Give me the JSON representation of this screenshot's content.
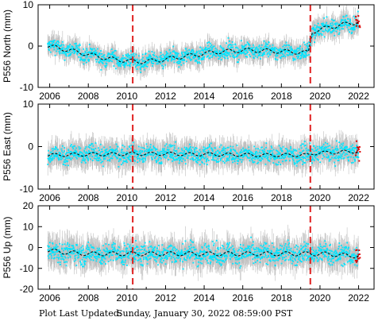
{
  "footer": {
    "label": "Plot Last Updated:",
    "value": "Sunday, January 30, 2022 08:59:00 PST"
  },
  "colors": {
    "error_bar": "#bfbfbf",
    "points": "#00e5ff",
    "model_line": "#000000",
    "event_line": "#e02020",
    "recent_points": "#dd0000"
  },
  "chart_data": [
    {
      "type": "scatter",
      "title": "",
      "xlabel": "",
      "ylabel": "P556 North (mm)",
      "xlim": [
        2005.4,
        2022.8
      ],
      "ylim": [
        -10,
        10
      ],
      "xticks": [
        2006,
        2008,
        2010,
        2012,
        2014,
        2016,
        2018,
        2020,
        2022
      ],
      "yticks": [
        -10,
        0,
        10
      ],
      "event_lines_x": [
        2010.3,
        2019.5
      ],
      "series": [
        {
          "x": [
            2005.9,
            2006.5,
            2007.0,
            2007.5,
            2008.0,
            2008.5,
            2009.0,
            2009.5,
            2010.0,
            2010.5,
            2011.0,
            2011.5,
            2012.0,
            2012.5,
            2013.0,
            2013.5,
            2014.0,
            2014.5,
            2015.0,
            2015.5,
            2016.0,
            2016.5,
            2017.0,
            2017.5,
            2018.0,
            2018.5,
            2019.0,
            2019.4,
            2019.6,
            2020.0,
            2020.5,
            2021.0,
            2021.5,
            2022.0
          ],
          "y": [
            0.0,
            -0.5,
            -1.0,
            -1.5,
            -2.0,
            -2.5,
            -3.0,
            -3.3,
            -3.5,
            -3.8,
            -3.7,
            -3.5,
            -3.2,
            -2.8,
            -2.5,
            -2.2,
            -1.8,
            -1.5,
            -1.3,
            -1.2,
            -1.0,
            -1.0,
            -1.1,
            -1.2,
            -1.3,
            -1.4,
            -1.5,
            -1.6,
            3.5,
            4.0,
            4.6,
            5.0,
            5.5,
            5.8
          ]
        }
      ]
    },
    {
      "type": "scatter",
      "title": "",
      "xlabel": "",
      "ylabel": "P556 East (mm)",
      "xlim": [
        2005.4,
        2022.8
      ],
      "ylim": [
        -10,
        10
      ],
      "xticks": [
        2006,
        2008,
        2010,
        2012,
        2014,
        2016,
        2018,
        2020,
        2022
      ],
      "yticks": [
        -10,
        0,
        10
      ],
      "event_lines_x": [
        2010.3,
        2019.5
      ],
      "series": [
        {
          "x": [
            2005.9,
            2006.5,
            2007.0,
            2007.5,
            2008.0,
            2008.5,
            2009.0,
            2009.5,
            2010.0,
            2010.5,
            2011.0,
            2011.5,
            2012.0,
            2012.5,
            2013.0,
            2013.5,
            2014.0,
            2014.5,
            2015.0,
            2015.5,
            2016.0,
            2016.5,
            2017.0,
            2017.5,
            2018.0,
            2018.5,
            2019.0,
            2019.4,
            2019.6,
            2020.0,
            2020.5,
            2021.0,
            2021.5,
            2022.0
          ],
          "y": [
            -2.0,
            -2.0,
            -1.9,
            -1.9,
            -1.8,
            -1.8,
            -1.8,
            -1.8,
            -1.7,
            -1.7,
            -1.7,
            -1.7,
            -1.7,
            -1.7,
            -1.8,
            -1.8,
            -1.8,
            -1.8,
            -1.9,
            -1.9,
            -1.9,
            -2.0,
            -2.0,
            -2.0,
            -2.0,
            -2.0,
            -2.0,
            -2.0,
            -1.6,
            -1.5,
            -1.4,
            -1.3,
            -1.2,
            -1.1
          ]
        }
      ]
    },
    {
      "type": "scatter",
      "title": "",
      "xlabel": "",
      "ylabel": "P556 Up (mm)",
      "xlim": [
        2005.4,
        2022.8
      ],
      "ylim": [
        -20,
        20
      ],
      "xticks": [
        2006,
        2008,
        2010,
        2012,
        2014,
        2016,
        2018,
        2020,
        2022
      ],
      "yticks": [
        -20,
        -10,
        0,
        10,
        20
      ],
      "event_lines_x": [
        2010.3,
        2019.5
      ],
      "series": [
        {
          "x": [
            2005.9,
            2006.5,
            2007.0,
            2007.5,
            2008.0,
            2008.5,
            2009.0,
            2009.5,
            2010.0,
            2010.5,
            2011.0,
            2011.5,
            2012.0,
            2012.5,
            2013.0,
            2013.5,
            2014.0,
            2014.5,
            2015.0,
            2015.5,
            2016.0,
            2016.5,
            2017.0,
            2017.5,
            2018.0,
            2018.5,
            2019.0,
            2019.4,
            2019.6,
            2020.0,
            2020.5,
            2021.0,
            2021.5,
            2022.0
          ],
          "y": [
            -1.5,
            -2.0,
            -2.5,
            -2.8,
            -3.0,
            -3.0,
            -3.0,
            -3.0,
            -3.0,
            -3.0,
            -3.0,
            -3.0,
            -3.0,
            -3.0,
            -3.0,
            -3.0,
            -3.0,
            -3.0,
            -3.0,
            -3.0,
            -3.0,
            -3.0,
            -3.0,
            -3.0,
            -3.0,
            -3.0,
            -3.0,
            -3.0,
            -3.0,
            -3.0,
            -3.2,
            -3.5,
            -4.0,
            -4.0
          ]
        }
      ]
    }
  ]
}
